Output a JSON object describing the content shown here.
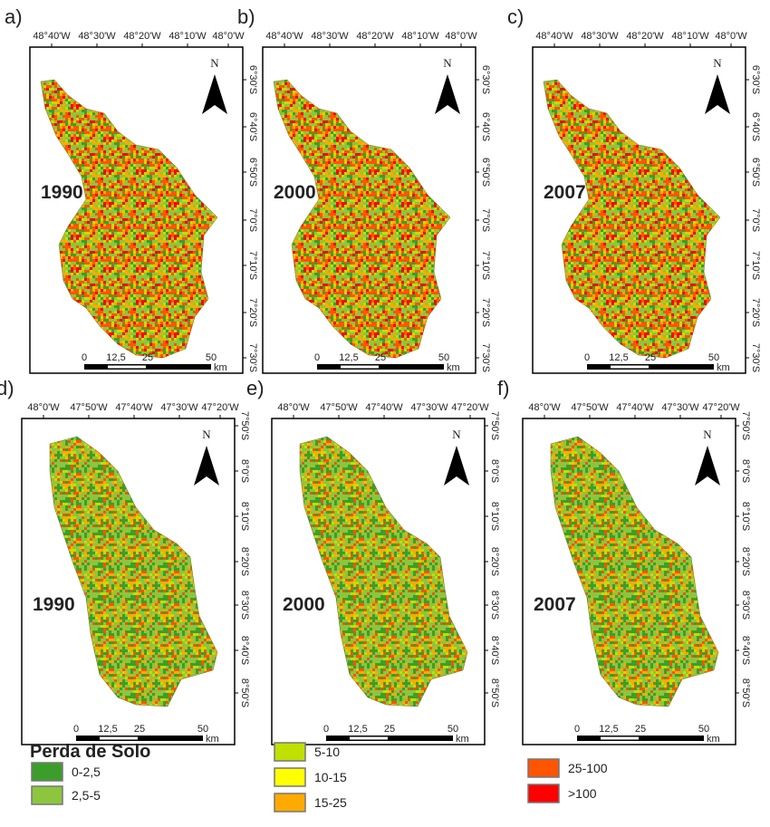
{
  "rows": [
    {
      "lon_ticks": [
        "48°40'W",
        "48°30'W",
        "48°20'W",
        "48°10'W",
        "48°0'W"
      ],
      "lat_ticks": [
        "6°30'S",
        "6°40'S",
        "6°50'S",
        "7°0'S",
        "7°10'S",
        "7°20'S",
        "7°30'S"
      ],
      "panels": [
        {
          "label": "a)",
          "year": "1990"
        },
        {
          "label": "b)",
          "year": "2000"
        },
        {
          "label": "c)",
          "year": "2007"
        }
      ]
    },
    {
      "lon_ticks": [
        "48°0'W",
        "47°50'W",
        "47°40'W",
        "47°30'W",
        "47°20'W"
      ],
      "lat_ticks": [
        "7°50'S",
        "8°0'S",
        "8°10'S",
        "8°20'S",
        "8°30'S",
        "8°40'S",
        "8°50'S"
      ],
      "panels": [
        {
          "label": "d)",
          "year": "1990"
        },
        {
          "label": "e)",
          "year": "2000"
        },
        {
          "label": "f)",
          "year": "2007"
        }
      ]
    }
  ],
  "north_label": "N",
  "scale_bar": {
    "labels": [
      "0",
      "12,5",
      "25",
      "50"
    ],
    "unit": "km"
  },
  "legend": {
    "title": "Perda de Solo",
    "items": [
      {
        "label": "0-2,5",
        "color": "#3c9e2a"
      },
      {
        "label": "2,5-5",
        "color": "#8cc63e"
      },
      {
        "label": "5-10",
        "color": "#bfe000"
      },
      {
        "label": "10-15",
        "color": "#ffff00"
      },
      {
        "label": "15-25",
        "color": "#ffaa00"
      },
      {
        "label": "25-100",
        "color": "#ff5500"
      },
      {
        "label": ">100",
        "color": "#ff0000"
      }
    ]
  }
}
